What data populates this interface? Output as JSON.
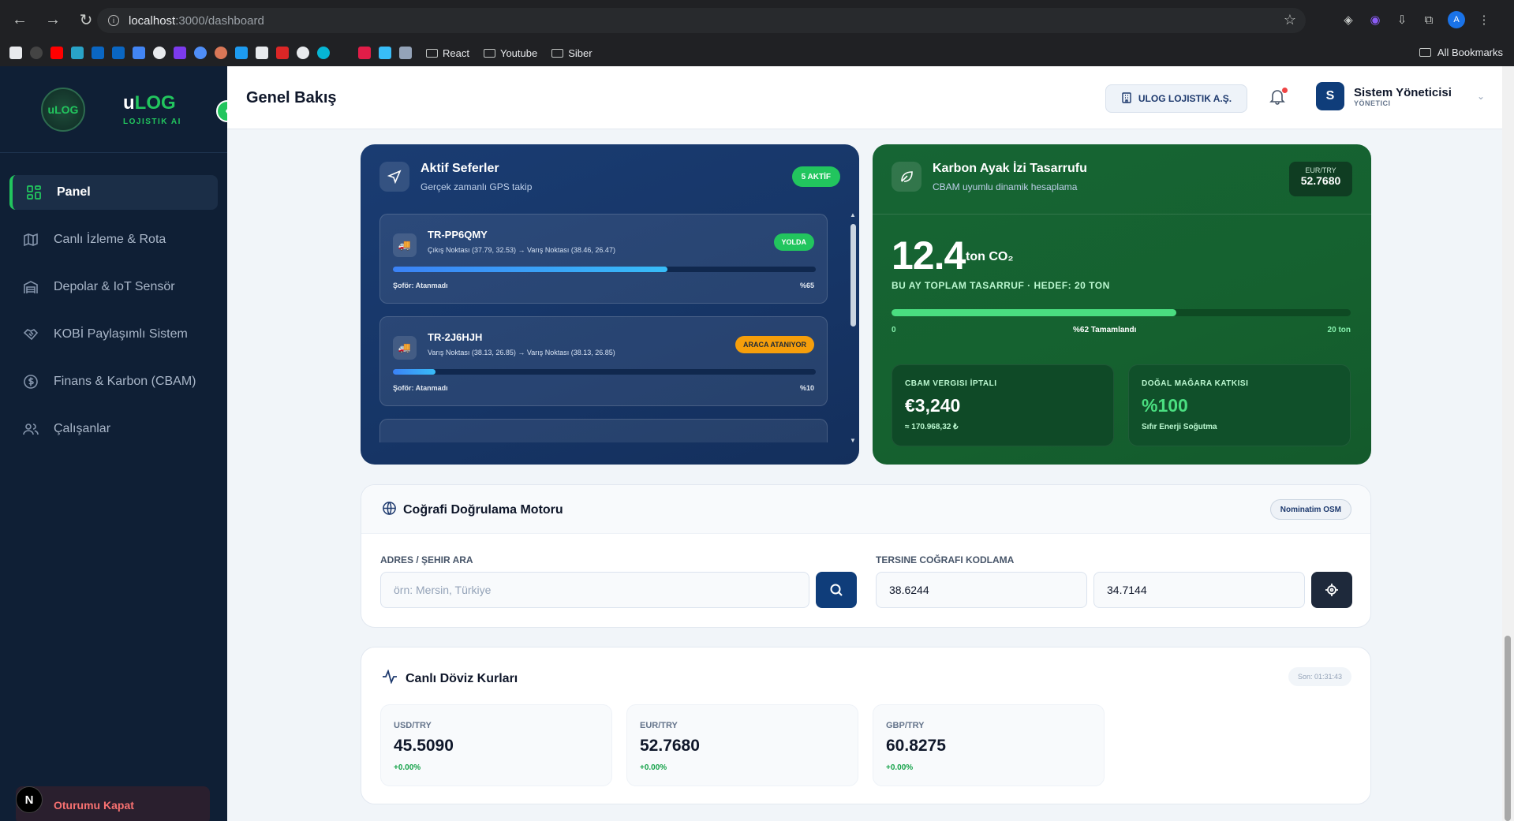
{
  "browser": {
    "url_host": "localhost",
    "url_path": ":3000/dashboard",
    "bookmark_folders": [
      "React",
      "Youtube",
      "Siber"
    ],
    "all_bookmarks": "All Bookmarks",
    "profile_letter": "A"
  },
  "sidebar": {
    "logo_text": "uLOG",
    "brand_main_1": "u",
    "brand_main_2": "LOG",
    "brand_sub": "LOJISTIK AI",
    "items": [
      {
        "label": "Panel",
        "icon": "grid-icon"
      },
      {
        "label": "Canlı İzleme & Rota",
        "icon": "map-icon"
      },
      {
        "label": "Depolar & IoT Sensör",
        "icon": "warehouse-icon"
      },
      {
        "label": "KOBİ Paylaşımlı Sistem",
        "icon": "handshake-icon"
      },
      {
        "label": "Finans & Karbon (CBAM)",
        "icon": "dollar-icon"
      },
      {
        "label": "Çalışanlar",
        "icon": "users-icon"
      }
    ],
    "logout": "Oturumu Kapat",
    "n_badge": "N"
  },
  "header": {
    "title": "Genel Bakış",
    "company": "ULOG LOJISTIK A.Ş.",
    "user_initial": "S",
    "user_name": "Sistem Yöneticisi",
    "user_role": "YÖNETICI"
  },
  "trips_card": {
    "title": "Aktif Seferler",
    "subtitle": "Gerçek zamanlı GPS takip",
    "active_badge": "5 AKTİF",
    "trips": [
      {
        "id": "TR-PP6QMY",
        "route": "Çıkış Noktası (37.79, 32.53) → Varış Noktası (38.46, 26.47)",
        "status": "YOLDA",
        "driver": "Şoför: Atanmadı",
        "progress_label": "%65",
        "progress": 0.65,
        "status_color": "#22c55e"
      },
      {
        "id": "TR-2J6HJH",
        "route": "Varış Noktası (38.13, 26.85) → Varış Noktası (38.13, 26.85)",
        "status": "ARACA ATANIYOR",
        "driver": "Şoför: Atanmadı",
        "progress_label": "%10",
        "progress": 0.1,
        "status_color": "#f59e0b"
      }
    ]
  },
  "carbon_card": {
    "title": "Karbon Ayak İzi Tasarrufu",
    "subtitle": "CBAM uyumlu dinamik hesaplama",
    "rate_label": "EUR/TRY",
    "rate_value": "52.7680",
    "total": "12.4",
    "unit": "ton CO₂",
    "caption": "BU AY TOPLAM TASARRUF · HEDEF: 20 TON",
    "progress": 0.62,
    "bar_min": "0",
    "bar_mid": "%62 Tamamlandı",
    "bar_max": "20 ton",
    "tax_label": "CBAM VERGISI İPTALI",
    "tax_value": "€3,240",
    "tax_try": "≈ 170.968,32 ₺",
    "cave_label": "DOĞAL MAĞARA KATKISI",
    "cave_value": "%100",
    "cave_sub": "Sıfır Enerji Soğutma"
  },
  "geo_card": {
    "title": "Coğrafi Doğrulama Motoru",
    "badge": "Nominatim OSM",
    "search_label": "ADRES / ŞEHIR ARA",
    "search_placeholder": "örn: Mersin, Türkiye",
    "reverse_label": "TERSINE COĞRAFI KODLAMA",
    "lat": "38.6244",
    "lng": "34.7144"
  },
  "fx_card": {
    "title": "Canlı Döviz Kurları",
    "last_update": "Son: 01:31:43",
    "rates": [
      {
        "pair": "USD/TRY",
        "value": "45.5090",
        "change": "+0.00%"
      },
      {
        "pair": "EUR/TRY",
        "value": "52.7680",
        "change": "+0.00%"
      },
      {
        "pair": "GBP/TRY",
        "value": "60.8275",
        "change": "+0.00%"
      }
    ]
  },
  "colors": {
    "accent_green": "#22c55e",
    "navy": "#0f1f35",
    "card_blue": "#1a3c72",
    "card_green": "#166534"
  }
}
